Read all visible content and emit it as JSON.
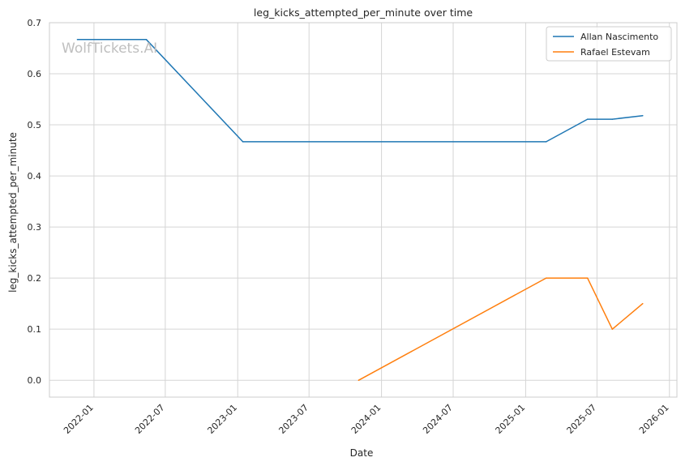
{
  "chart_data": {
    "type": "line",
    "title": "leg_kicks_attempted_per_minute over time",
    "xlabel": "Date",
    "ylabel": "leg_kicks_attempted_per_minute",
    "watermark": "WolfTickets.AI",
    "x_axis_type": "date",
    "xlim": [
      "2021-09-10",
      "2026-01-20"
    ],
    "ylim": [
      -0.033,
      0.7
    ],
    "x_ticks": [
      "2022-01",
      "2022-07",
      "2023-01",
      "2023-07",
      "2024-01",
      "2024-07",
      "2025-01",
      "2025-07",
      "2026-01"
    ],
    "y_ticks": [
      "0.0",
      "0.1",
      "0.2",
      "0.3",
      "0.4",
      "0.5",
      "0.6",
      "0.7"
    ],
    "grid": true,
    "legend_position": "top-right",
    "series": [
      {
        "name": "Allan Nascimento",
        "color": "#1f77b4",
        "points": [
          {
            "x": "2021-11-20",
            "y": 0.667
          },
          {
            "x": "2022-05-14",
            "y": 0.667
          },
          {
            "x": "2023-01-14",
            "y": 0.467
          },
          {
            "x": "2025-02-22",
            "y": 0.467
          },
          {
            "x": "2025-06-07",
            "y": 0.511
          },
          {
            "x": "2025-08-09",
            "y": 0.511
          },
          {
            "x": "2025-10-25",
            "y": 0.518
          }
        ]
      },
      {
        "name": "Rafael Estevam",
        "color": "#ff7f0e",
        "points": [
          {
            "x": "2023-11-04",
            "y": 0.0
          },
          {
            "x": "2025-02-22",
            "y": 0.2
          },
          {
            "x": "2025-06-07",
            "y": 0.2
          },
          {
            "x": "2025-08-09",
            "y": 0.1
          },
          {
            "x": "2025-10-25",
            "y": 0.15
          }
        ]
      }
    ]
  }
}
